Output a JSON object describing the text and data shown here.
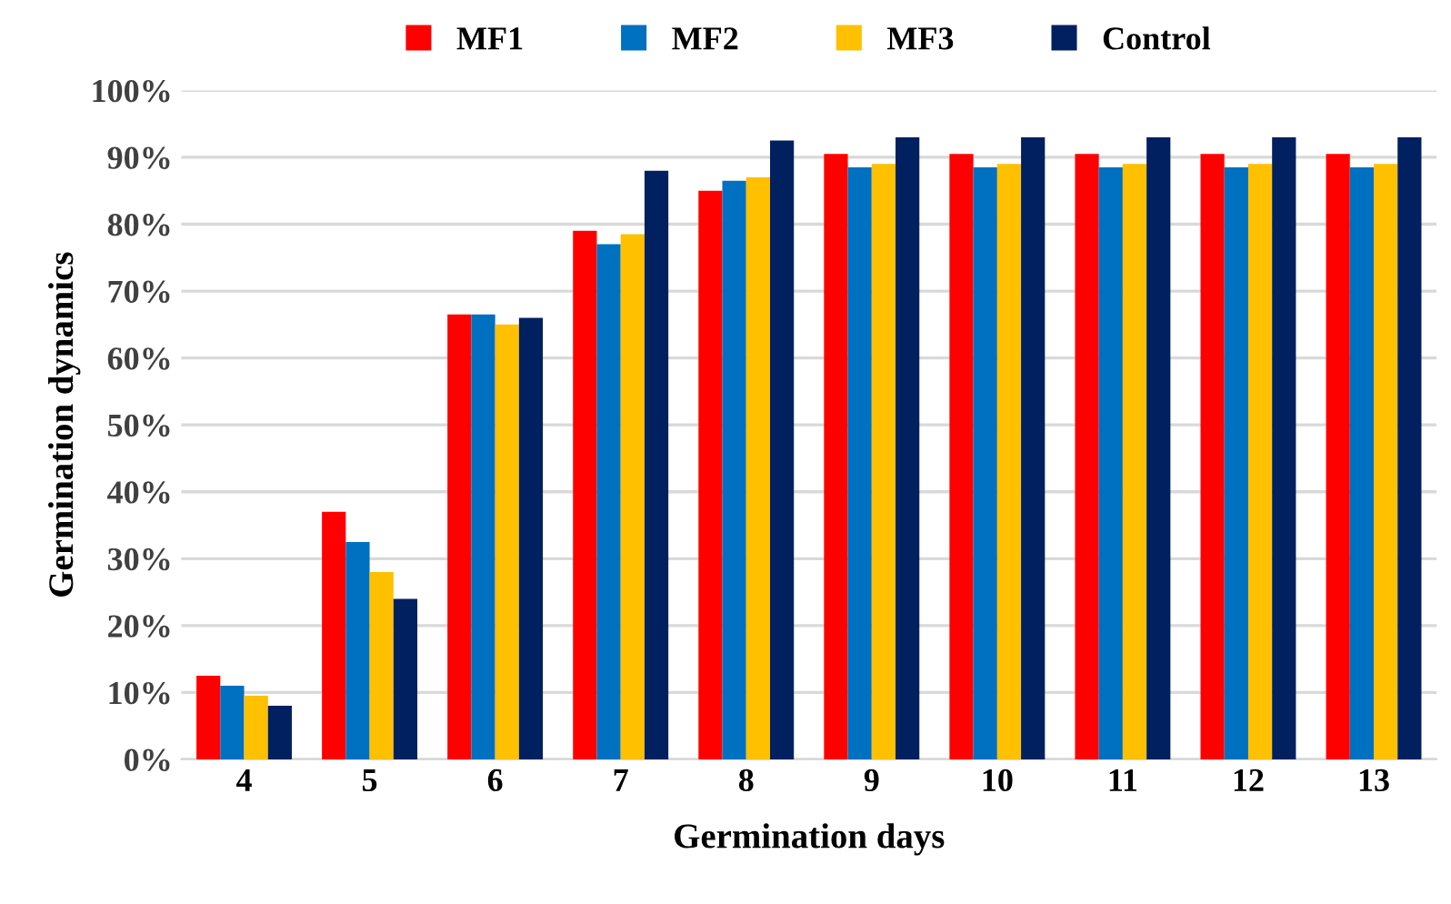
{
  "chart_data": {
    "type": "bar",
    "xlabel": "Germination days",
    "ylabel": "Germination dynamics",
    "categories": [
      "4",
      "5",
      "6",
      "7",
      "8",
      "9",
      "10",
      "11",
      "12",
      "13"
    ],
    "series": [
      {
        "name": "MF1",
        "color": "#ff0000",
        "values": [
          12.5,
          37,
          66.5,
          79,
          85,
          90.5,
          90.5,
          90.5,
          90.5,
          90.5
        ]
      },
      {
        "name": "MF2",
        "color": "#0070c0",
        "values": [
          11,
          32.5,
          66.5,
          77,
          86.5,
          88.5,
          88.5,
          88.5,
          88.5,
          88.5
        ]
      },
      {
        "name": "MF3",
        "color": "#ffc000",
        "values": [
          9.5,
          28,
          65,
          78.5,
          87,
          89,
          89,
          89,
          89,
          89
        ]
      },
      {
        "name": "Control",
        "color": "#002060",
        "values": [
          8,
          24,
          66,
          88,
          92.5,
          93,
          93,
          93,
          93,
          93
        ]
      }
    ],
    "ylim": [
      0,
      100
    ],
    "yticks": [
      {
        "value": 0,
        "label": "0%"
      },
      {
        "value": 10,
        "label": "10%"
      },
      {
        "value": 20,
        "label": "20%"
      },
      {
        "value": 30,
        "label": "30%"
      },
      {
        "value": 40,
        "label": "40%"
      },
      {
        "value": 50,
        "label": "50%"
      },
      {
        "value": 60,
        "label": "60%"
      },
      {
        "value": 70,
        "label": "70%"
      },
      {
        "value": 80,
        "label": "80%"
      },
      {
        "value": 90,
        "label": "90%"
      },
      {
        "value": 100,
        "label": "100%"
      }
    ],
    "grid": "y",
    "legend": "top"
  }
}
